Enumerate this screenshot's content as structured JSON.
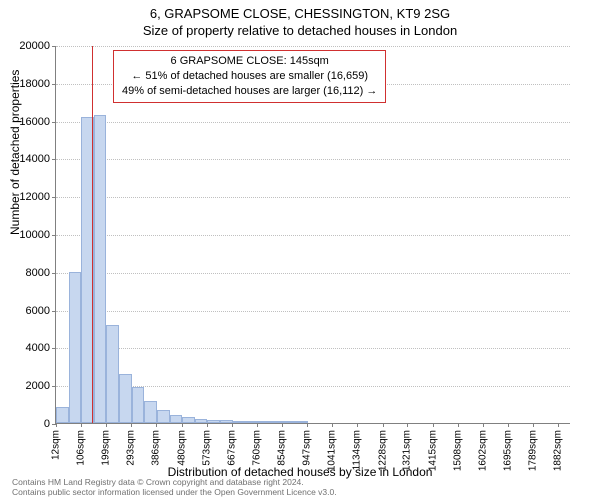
{
  "titles": {
    "line1": "6, GRAPSOME CLOSE, CHESSINGTON, KT9 2SG",
    "line2": "Size of property relative to detached houses in London"
  },
  "chart": {
    "type": "histogram",
    "y_axis_title": "Number of detached properties",
    "x_axis_title": "Distribution of detached houses by size in London",
    "ylim": [
      0,
      20000
    ],
    "ytick_step": 2000,
    "yticks": [
      0,
      2000,
      4000,
      6000,
      8000,
      10000,
      12000,
      14000,
      16000,
      18000,
      20000
    ],
    "grid_color": "#c0c0c0",
    "axis_color": "#808080",
    "background_color": "#ffffff",
    "bar_fill": "#c7d7ef",
    "bar_border": "#9ab3db",
    "marker_color": "#d03030",
    "marker_x_sqm": 145,
    "x_range_sqm": [
      12,
      1930
    ],
    "x_tick_values_sqm": [
      12,
      106,
      199,
      293,
      386,
      480,
      573,
      667,
      760,
      854,
      947,
      1041,
      1134,
      1228,
      1321,
      1415,
      1508,
      1602,
      1695,
      1789,
      1882
    ],
    "x_tick_labels": [
      "12sqm",
      "106sqm",
      "199sqm",
      "293sqm",
      "386sqm",
      "480sqm",
      "573sqm",
      "667sqm",
      "760sqm",
      "854sqm",
      "947sqm",
      "1041sqm",
      "1134sqm",
      "1228sqm",
      "1321sqm",
      "1415sqm",
      "1508sqm",
      "1602sqm",
      "1695sqm",
      "1789sqm",
      "1882sqm"
    ],
    "bin_width_sqm": 47,
    "bins": [
      {
        "start_sqm": 12,
        "count": 850
      },
      {
        "start_sqm": 59,
        "count": 8000
      },
      {
        "start_sqm": 106,
        "count": 16200
      },
      {
        "start_sqm": 153,
        "count": 16300
      },
      {
        "start_sqm": 200,
        "count": 5200
      },
      {
        "start_sqm": 247,
        "count": 2600
      },
      {
        "start_sqm": 294,
        "count": 1900
      },
      {
        "start_sqm": 341,
        "count": 1150
      },
      {
        "start_sqm": 388,
        "count": 700
      },
      {
        "start_sqm": 435,
        "count": 430
      },
      {
        "start_sqm": 482,
        "count": 320
      },
      {
        "start_sqm": 529,
        "count": 220
      },
      {
        "start_sqm": 576,
        "count": 180
      },
      {
        "start_sqm": 623,
        "count": 140
      },
      {
        "start_sqm": 670,
        "count": 110
      },
      {
        "start_sqm": 717,
        "count": 90
      },
      {
        "start_sqm": 764,
        "count": 70
      },
      {
        "start_sqm": 811,
        "count": 55
      },
      {
        "start_sqm": 858,
        "count": 45
      },
      {
        "start_sqm": 905,
        "count": 40
      }
    ]
  },
  "annotation": {
    "line1": "6 GRAPSOME CLOSE: 145sqm",
    "line2": "← 51% of detached houses are smaller (16,659)",
    "line3": "49% of semi-detached houses are larger (16,112) →",
    "border_color": "#d03030",
    "fontsize": 11
  },
  "footer": {
    "line1": "Contains HM Land Registry data © Crown copyright and database right 2024.",
    "line2": "Contains public sector information licensed under the Open Government Licence v3.0.",
    "color": "#707070"
  }
}
